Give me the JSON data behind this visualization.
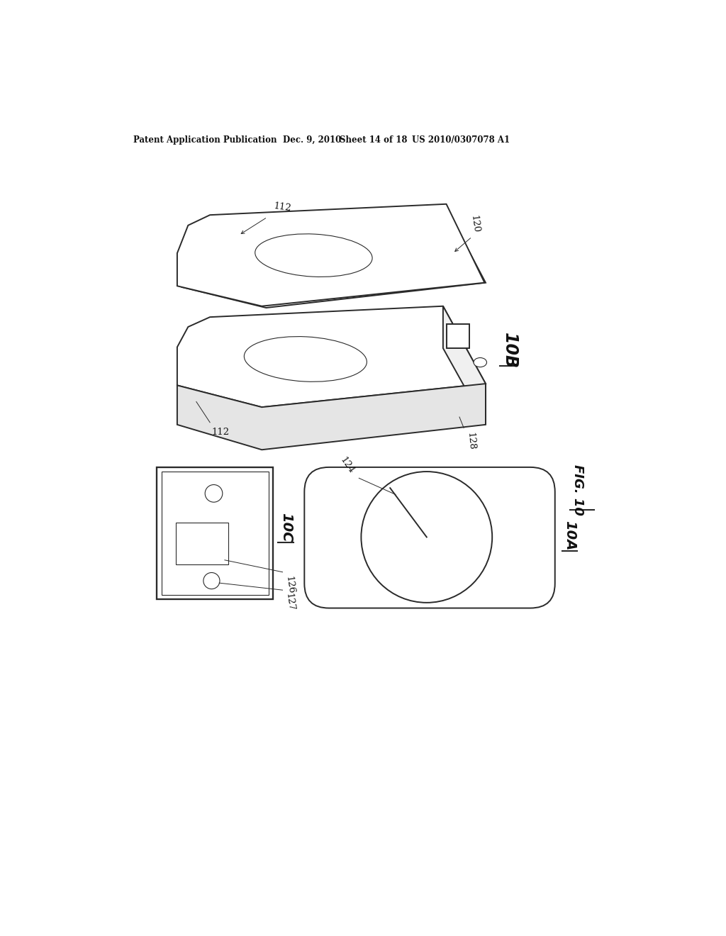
{
  "bg_color": "#ffffff",
  "header_text": "Patent Application Publication",
  "header_date": "Dec. 9, 2010",
  "header_sheet": "Sheet 14 of 18",
  "header_patent": "US 2010/0307078 A1",
  "fig_label": "FIG. 10",
  "subfig_10B_label": "10B",
  "subfig_10A_label": "10A",
  "subfig_10C_label": "10C",
  "label_112_top": "112",
  "label_112_bot": "112",
  "label_120": "120",
  "label_128": "128",
  "label_124": "124",
  "label_126": "126",
  "label_127": "127",
  "line_color": "#2a2a2a",
  "line_width": 1.4,
  "thin_line": 0.8,
  "annotation_lw": 0.7
}
